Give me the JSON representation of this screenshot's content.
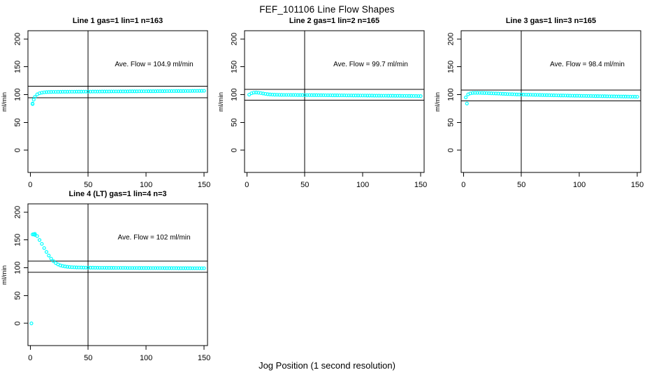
{
  "chart_data": {
    "type": "scatter",
    "title": "FEF_101106  Line Flow Shapes",
    "xlabel": "Jog Position (1 second resolution)",
    "ylabel": "ml/min",
    "x_ticks": [
      0,
      50,
      100,
      150
    ],
    "y_ticks": [
      0,
      50,
      100,
      150,
      200
    ],
    "xlim": [
      -2,
      153
    ],
    "ylim": [
      -40,
      215
    ],
    "grid": false,
    "legend": false,
    "point_color": "#00ffff",
    "line_color": "#000000",
    "vline_x": 50,
    "panels": [
      {
        "title": "Line 1 gas=1 lin=1 n=163",
        "n": 163,
        "ave_flow": 104.9,
        "ave_flow_label": "Ave. Flow =  104.9  ml/min",
        "hlines": [
          115.4,
          94.4
        ],
        "series": {
          "x_start": 2,
          "x_step": 2,
          "y": [
            83,
            96,
            100.5,
            102.5,
            103.6,
            104.2,
            104.6,
            104.8,
            104.9,
            105,
            105,
            105.1,
            105.1,
            105.2,
            105.2,
            105.2,
            105.3,
            105.3,
            105.3,
            105.4,
            105.4,
            105.4,
            105.5,
            105.5,
            105.5,
            105.5,
            105.6,
            105.6,
            105.6,
            105.6,
            105.7,
            105.7,
            105.7,
            105.7,
            105.8,
            105.8,
            105.8,
            105.8,
            105.9,
            105.9,
            105.9,
            105.9,
            106,
            106,
            106,
            106,
            106.1,
            106.1,
            106.1,
            106.1,
            106.2,
            106.2,
            106.2,
            106.2,
            106.3,
            106.3,
            106.3,
            106.3,
            106.4,
            106.4,
            106.4,
            106.4,
            106.5,
            106.5,
            106.5,
            106.5,
            106.6,
            106.6,
            106.6,
            106.7,
            106.7,
            106.7,
            106.8,
            106.8,
            106.9
          ]
        },
        "extra_points": [
          [
            2,
            84
          ],
          [
            3,
            91
          ]
        ]
      },
      {
        "title": "Line 2 gas=1 lin=2 n=165",
        "n": 165,
        "ave_flow": 99.7,
        "ave_flow_label": "Ave. Flow =  99.7  ml/min",
        "hlines": [
          109.7,
          89.7
        ],
        "series": {
          "x_start": 2,
          "x_step": 2,
          "y": [
            100,
            102.5,
            103.6,
            103.8,
            103.4,
            102.8,
            102.1,
            101.4,
            100.8,
            100.4,
            100.1,
            99.9,
            99.8,
            99.7,
            99.6,
            99.5,
            99.5,
            99.5,
            99.4,
            99.4,
            99.4,
            99.3,
            99.3,
            99.3,
            99.2,
            99.2,
            99.2,
            99.1,
            99.1,
            99.1,
            99,
            99,
            99,
            98.9,
            98.9,
            98.9,
            98.8,
            98.8,
            98.8,
            98.7,
            98.7,
            98.7,
            98.6,
            98.6,
            98.6,
            98.5,
            98.5,
            98.5,
            98.4,
            98.4,
            98.4,
            98.3,
            98.3,
            98.3,
            98.2,
            98.2,
            98.2,
            98.1,
            98.1,
            98.1,
            98,
            98,
            98,
            97.9,
            97.9,
            97.9,
            97.8,
            97.8,
            97.8,
            97.7,
            97.7,
            97.6,
            97.6,
            97.5,
            97.4
          ]
        },
        "extra_points": []
      },
      {
        "title": "Line 3 gas=1 lin=3 n=165",
        "n": 165,
        "ave_flow": 98.4,
        "ave_flow_label": "Ave. Flow =  98.4  ml/min",
        "hlines": [
          108.2,
          88.6
        ],
        "series": {
          "x_start": 2,
          "x_step": 2,
          "y": [
            95,
            100.5,
            102.3,
            103,
            103.2,
            103.2,
            103.1,
            103,
            102.9,
            102.8,
            102.6,
            102.4,
            102.2,
            102.1,
            101.9,
            101.7,
            101.5,
            101.3,
            101.1,
            100.9,
            100.8,
            100.6,
            100.4,
            100.3,
            100.2,
            100.1,
            100,
            99.9,
            99.8,
            99.7,
            99.6,
            99.5,
            99.4,
            99.3,
            99.2,
            99.1,
            99,
            98.9,
            98.8,
            98.7,
            98.6,
            98.5,
            98.5,
            98.4,
            98.3,
            98.2,
            98.1,
            98,
            98,
            97.9,
            97.8,
            97.8,
            97.7,
            97.6,
            97.6,
            97.5,
            97.4,
            97.4,
            97.3,
            97.2,
            97.2,
            97.1,
            97,
            97,
            96.9,
            96.8,
            96.8,
            96.7,
            96.6,
            96.6,
            96.5,
            96.4,
            96.4,
            96.3,
            96.2
          ]
        },
        "extra_points": [
          [
            3,
            84
          ]
        ]
      },
      {
        "title": "Line 4 (LT) gas=1 lin=4 n=3",
        "n": 3,
        "ave_flow": 102,
        "ave_flow_label": "Ave. Flow =  102  ml/min",
        "hlines": [
          112.2,
          91.8
        ],
        "series": {
          "x_start": 2,
          "x_step": 2,
          "y": [
            160,
            161,
            157,
            150,
            143,
            135.5,
            128.5,
            122,
            116.5,
            112,
            108.5,
            106,
            104.3,
            103.2,
            102.4,
            101.8,
            101.4,
            101.1,
            100.9,
            100.7,
            100.6,
            100.5,
            100.4,
            100.3,
            100.3,
            100.2,
            100.2,
            100.1,
            100.1,
            100,
            100,
            100,
            99.9,
            99.9,
            99.9,
            99.9,
            99.8,
            99.8,
            99.8,
            99.8,
            99.8,
            99.7,
            99.7,
            99.7,
            99.7,
            99.7,
            99.6,
            99.6,
            99.6,
            99.6,
            99.6,
            99.5,
            99.5,
            99.5,
            99.5,
            99.5,
            99.5,
            99.4,
            99.4,
            99.4,
            99.4,
            99.4,
            99.4,
            99.3,
            99.3,
            99.3,
            99.3,
            99.3,
            99.3,
            99.2,
            99.2,
            99.2,
            99.2,
            99.2,
            99.2
          ]
        },
        "extra_points": [
          [
            1,
            0
          ],
          [
            3,
            160.5
          ],
          [
            4,
            159
          ]
        ]
      }
    ]
  }
}
